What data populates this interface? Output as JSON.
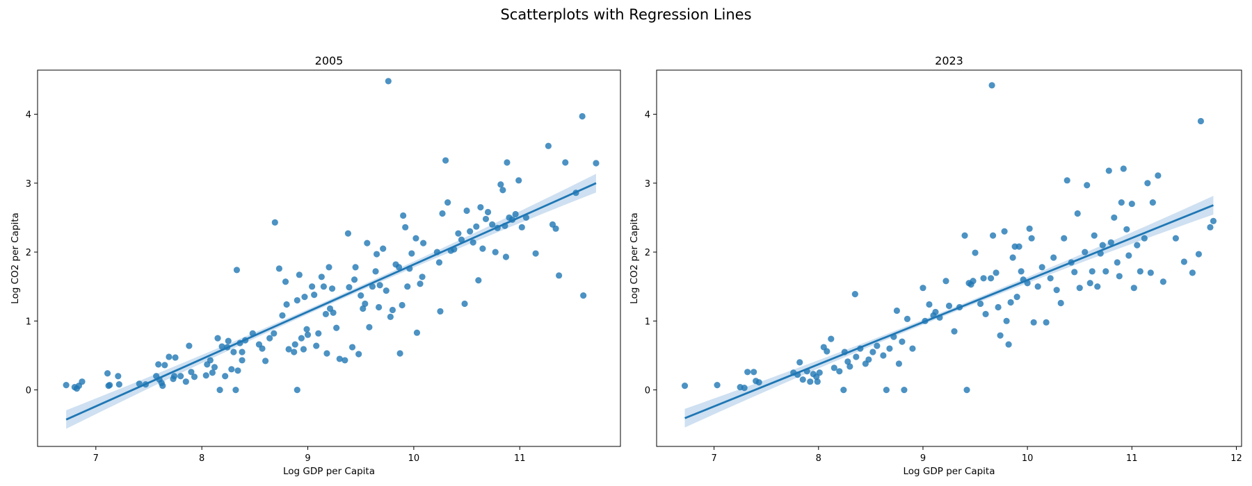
{
  "suptitle": "Scatterplots with Regression Lines",
  "colors": {
    "points": "#1f77b4",
    "line": "#1f77b4",
    "band": "#c6dbef"
  },
  "chart_data": [
    {
      "type": "scatter",
      "title": "2005",
      "xlabel": "Log GDP per Capita",
      "ylabel": "Log CO2 per Capita",
      "xlim": [
        6.45,
        11.95
      ],
      "ylim": [
        -0.82,
        4.64
      ],
      "xticks": [
        7,
        8,
        9,
        10,
        11
      ],
      "yticks": [
        0,
        1,
        2,
        3,
        4
      ],
      "regression": {
        "x0": 6.72,
        "y0": -0.43,
        "x1": 11.72,
        "y1": 3.0
      },
      "points": [
        [
          6.72,
          0.07
        ],
        [
          6.8,
          0.04
        ],
        [
          6.82,
          0.02
        ],
        [
          6.84,
          0.06
        ],
        [
          6.87,
          0.12
        ],
        [
          7.11,
          0.24
        ],
        [
          7.12,
          0.06
        ],
        [
          7.13,
          0.07
        ],
        [
          7.21,
          0.2
        ],
        [
          7.22,
          0.08
        ],
        [
          7.41,
          0.09
        ],
        [
          7.47,
          0.08
        ],
        [
          7.57,
          0.2
        ],
        [
          7.59,
          0.37
        ],
        [
          7.6,
          0.15
        ],
        [
          7.62,
          0.1
        ],
        [
          7.63,
          0.06
        ],
        [
          7.65,
          0.36
        ],
        [
          7.69,
          0.48
        ],
        [
          7.73,
          0.16
        ],
        [
          7.74,
          0.2
        ],
        [
          7.75,
          0.47
        ],
        [
          7.8,
          0.2
        ],
        [
          7.85,
          0.12
        ],
        [
          7.88,
          0.64
        ],
        [
          7.9,
          0.26
        ],
        [
          7.93,
          0.19
        ],
        [
          8.04,
          0.21
        ],
        [
          8.05,
          0.37
        ],
        [
          8.08,
          0.43
        ],
        [
          8.1,
          0.25
        ],
        [
          8.12,
          0.33
        ],
        [
          8.15,
          0.75
        ],
        [
          8.17,
          0.0
        ],
        [
          8.19,
          0.63
        ],
        [
          8.22,
          0.2
        ],
        [
          8.24,
          0.62
        ],
        [
          8.25,
          0.71
        ],
        [
          8.28,
          0.3
        ],
        [
          8.3,
          0.55
        ],
        [
          8.32,
          0.0
        ],
        [
          8.33,
          1.74
        ],
        [
          8.34,
          0.28
        ],
        [
          8.36,
          0.68
        ],
        [
          8.38,
          0.55
        ],
        [
          8.38,
          0.43
        ],
        [
          8.41,
          0.72
        ],
        [
          8.48,
          0.82
        ],
        [
          8.54,
          0.66
        ],
        [
          8.57,
          0.6
        ],
        [
          8.6,
          0.42
        ],
        [
          8.64,
          0.75
        ],
        [
          8.68,
          0.82
        ],
        [
          8.69,
          2.43
        ],
        [
          8.73,
          1.76
        ],
        [
          8.76,
          1.08
        ],
        [
          8.79,
          1.57
        ],
        [
          8.8,
          1.24
        ],
        [
          8.82,
          0.59
        ],
        [
          8.87,
          0.55
        ],
        [
          8.88,
          0.66
        ],
        [
          8.9,
          1.3
        ],
        [
          8.9,
          0.0
        ],
        [
          8.92,
          1.67
        ],
        [
          8.94,
          0.75
        ],
        [
          8.96,
          0.59
        ],
        [
          8.97,
          1.35
        ],
        [
          8.99,
          0.88
        ],
        [
          9.0,
          0.8
        ],
        [
          9.04,
          1.5
        ],
        [
          9.06,
          1.38
        ],
        [
          9.08,
          0.64
        ],
        [
          9.1,
          0.82
        ],
        [
          9.13,
          1.64
        ],
        [
          9.15,
          1.5
        ],
        [
          9.17,
          1.1
        ],
        [
          9.18,
          0.53
        ],
        [
          9.2,
          1.78
        ],
        [
          9.21,
          1.18
        ],
        [
          9.23,
          1.47
        ],
        [
          9.24,
          1.12
        ],
        [
          9.27,
          0.9
        ],
        [
          9.3,
          0.45
        ],
        [
          9.35,
          0.43
        ],
        [
          9.38,
          2.27
        ],
        [
          9.39,
          1.49
        ],
        [
          9.42,
          0.62
        ],
        [
          9.44,
          1.6
        ],
        [
          9.45,
          1.78
        ],
        [
          9.48,
          0.52
        ],
        [
          9.5,
          1.37
        ],
        [
          9.52,
          1.18
        ],
        [
          9.54,
          1.25
        ],
        [
          9.56,
          2.13
        ],
        [
          9.58,
          0.91
        ],
        [
          9.61,
          1.5
        ],
        [
          9.64,
          1.72
        ],
        [
          9.65,
          1.97
        ],
        [
          9.67,
          1.2
        ],
        [
          9.68,
          1.52
        ],
        [
          9.71,
          2.05
        ],
        [
          9.74,
          1.44
        ],
        [
          9.76,
          4.48
        ],
        [
          9.78,
          1.06
        ],
        [
          9.8,
          1.16
        ],
        [
          9.83,
          1.82
        ],
        [
          9.86,
          1.78
        ],
        [
          9.87,
          0.53
        ],
        [
          9.89,
          1.23
        ],
        [
          9.9,
          2.53
        ],
        [
          9.92,
          2.36
        ],
        [
          9.94,
          1.5
        ],
        [
          9.96,
          1.76
        ],
        [
          9.98,
          1.98
        ],
        [
          10.02,
          2.2
        ],
        [
          10.03,
          0.83
        ],
        [
          10.06,
          1.54
        ],
        [
          10.08,
          1.64
        ],
        [
          10.09,
          2.13
        ],
        [
          10.22,
          2.0
        ],
        [
          10.24,
          1.85
        ],
        [
          10.25,
          1.14
        ],
        [
          10.27,
          2.56
        ],
        [
          10.3,
          3.33
        ],
        [
          10.32,
          2.72
        ],
        [
          10.35,
          2.02
        ],
        [
          10.38,
          2.04
        ],
        [
          10.42,
          2.27
        ],
        [
          10.45,
          2.18
        ],
        [
          10.48,
          1.25
        ],
        [
          10.5,
          2.6
        ],
        [
          10.53,
          2.3
        ],
        [
          10.56,
          2.14
        ],
        [
          10.59,
          2.37
        ],
        [
          10.61,
          1.59
        ],
        [
          10.63,
          2.65
        ],
        [
          10.65,
          2.05
        ],
        [
          10.68,
          2.48
        ],
        [
          10.7,
          2.58
        ],
        [
          10.74,
          2.4
        ],
        [
          10.77,
          2.0
        ],
        [
          10.79,
          2.35
        ],
        [
          10.82,
          2.98
        ],
        [
          10.84,
          2.9
        ],
        [
          10.86,
          2.38
        ],
        [
          10.87,
          1.93
        ],
        [
          10.88,
          3.3
        ],
        [
          10.9,
          2.5
        ],
        [
          10.93,
          2.47
        ],
        [
          10.96,
          2.55
        ],
        [
          10.99,
          3.04
        ],
        [
          11.02,
          2.36
        ],
        [
          11.06,
          2.5
        ],
        [
          11.15,
          1.98
        ],
        [
          11.27,
          3.54
        ],
        [
          11.31,
          2.4
        ],
        [
          11.34,
          2.34
        ],
        [
          11.37,
          1.66
        ],
        [
          11.43,
          3.3
        ],
        [
          11.53,
          2.86
        ],
        [
          11.59,
          3.97
        ],
        [
          11.6,
          1.37
        ],
        [
          11.72,
          3.29
        ]
      ]
    },
    {
      "type": "scatter",
      "title": "2023",
      "xlabel": "Log GDP per Capita",
      "ylabel": "Log CO2 per Capita",
      "xlim": [
        6.45,
        12.05
      ],
      "ylim": [
        -0.82,
        4.64
      ],
      "xticks": [
        7,
        8,
        9,
        10,
        11,
        12
      ],
      "yticks": [
        0,
        1,
        2,
        3,
        4
      ],
      "regression": {
        "x0": 6.72,
        "y0": -0.41,
        "x1": 11.78,
        "y1": 2.68
      },
      "points": [
        [
          6.72,
          0.06
        ],
        [
          7.03,
          0.07
        ],
        [
          7.25,
          0.04
        ],
        [
          7.29,
          0.03
        ],
        [
          7.32,
          0.26
        ],
        [
          7.38,
          0.26
        ],
        [
          7.4,
          0.13
        ],
        [
          7.43,
          0.11
        ],
        [
          7.76,
          0.25
        ],
        [
          7.8,
          0.22
        ],
        [
          7.82,
          0.4
        ],
        [
          7.85,
          0.15
        ],
        [
          7.89,
          0.27
        ],
        [
          7.92,
          0.12
        ],
        [
          7.95,
          0.23
        ],
        [
          7.98,
          0.19
        ],
        [
          7.99,
          0.12
        ],
        [
          8.01,
          0.25
        ],
        [
          8.05,
          0.62
        ],
        [
          8.08,
          0.56
        ],
        [
          8.12,
          0.74
        ],
        [
          8.15,
          0.32
        ],
        [
          8.2,
          0.27
        ],
        [
          8.24,
          0.0
        ],
        [
          8.25,
          0.55
        ],
        [
          8.28,
          0.41
        ],
        [
          8.3,
          0.34
        ],
        [
          8.35,
          1.39
        ],
        [
          8.36,
          0.48
        ],
        [
          8.4,
          0.6
        ],
        [
          8.45,
          0.38
        ],
        [
          8.48,
          0.44
        ],
        [
          8.52,
          0.55
        ],
        [
          8.56,
          0.64
        ],
        [
          8.62,
          0.5
        ],
        [
          8.65,
          0.0
        ],
        [
          8.68,
          0.6
        ],
        [
          8.72,
          0.77
        ],
        [
          8.75,
          1.15
        ],
        [
          8.77,
          0.38
        ],
        [
          8.8,
          0.7
        ],
        [
          8.82,
          0.0
        ],
        [
          8.85,
          1.03
        ],
        [
          8.9,
          0.6
        ],
        [
          9.0,
          1.48
        ],
        [
          9.02,
          1.0
        ],
        [
          9.06,
          1.24
        ],
        [
          9.1,
          1.08
        ],
        [
          9.12,
          1.13
        ],
        [
          9.16,
          1.05
        ],
        [
          9.22,
          1.58
        ],
        [
          9.25,
          1.22
        ],
        [
          9.3,
          0.85
        ],
        [
          9.35,
          1.2
        ],
        [
          9.4,
          2.24
        ],
        [
          9.42,
          0.0
        ],
        [
          9.44,
          1.55
        ],
        [
          9.46,
          1.53
        ],
        [
          9.48,
          1.58
        ],
        [
          9.5,
          1.99
        ],
        [
          9.55,
          1.25
        ],
        [
          9.58,
          1.62
        ],
        [
          9.6,
          1.1
        ],
        [
          9.65,
          1.62
        ],
        [
          9.66,
          4.42
        ],
        [
          9.67,
          2.24
        ],
        [
          9.7,
          1.7
        ],
        [
          9.72,
          1.2
        ],
        [
          9.74,
          0.79
        ],
        [
          9.78,
          2.3
        ],
        [
          9.8,
          1.0
        ],
        [
          9.82,
          0.66
        ],
        [
          9.84,
          1.27
        ],
        [
          9.86,
          1.92
        ],
        [
          9.88,
          2.08
        ],
        [
          9.9,
          1.35
        ],
        [
          9.92,
          2.08
        ],
        [
          9.94,
          1.72
        ],
        [
          9.96,
          1.6
        ],
        [
          10.0,
          1.55
        ],
        [
          10.02,
          2.34
        ],
        [
          10.04,
          2.2
        ],
        [
          10.06,
          0.98
        ],
        [
          10.1,
          1.5
        ],
        [
          10.14,
          1.78
        ],
        [
          10.18,
          0.98
        ],
        [
          10.22,
          1.62
        ],
        [
          10.25,
          1.92
        ],
        [
          10.28,
          1.45
        ],
        [
          10.32,
          1.26
        ],
        [
          10.35,
          2.2
        ],
        [
          10.38,
          3.04
        ],
        [
          10.42,
          1.85
        ],
        [
          10.45,
          1.71
        ],
        [
          10.48,
          2.56
        ],
        [
          10.5,
          1.48
        ],
        [
          10.55,
          2.0
        ],
        [
          10.57,
          2.97
        ],
        [
          10.6,
          1.55
        ],
        [
          10.62,
          1.72
        ],
        [
          10.64,
          2.24
        ],
        [
          10.67,
          1.5
        ],
        [
          10.7,
          1.98
        ],
        [
          10.72,
          2.1
        ],
        [
          10.75,
          1.72
        ],
        [
          10.78,
          3.18
        ],
        [
          10.8,
          2.14
        ],
        [
          10.83,
          2.5
        ],
        [
          10.86,
          1.85
        ],
        [
          10.88,
          1.65
        ],
        [
          10.9,
          2.72
        ],
        [
          10.92,
          3.21
        ],
        [
          10.95,
          2.33
        ],
        [
          10.97,
          1.95
        ],
        [
          11.0,
          2.7
        ],
        [
          11.02,
          1.48
        ],
        [
          11.05,
          2.1
        ],
        [
          11.08,
          1.72
        ],
        [
          11.12,
          2.2
        ],
        [
          11.15,
          3.0
        ],
        [
          11.18,
          1.7
        ],
        [
          11.2,
          2.72
        ],
        [
          11.25,
          3.11
        ],
        [
          11.3,
          1.57
        ],
        [
          11.42,
          2.2
        ],
        [
          11.5,
          1.86
        ],
        [
          11.58,
          1.7
        ],
        [
          11.64,
          1.97
        ],
        [
          11.66,
          3.9
        ],
        [
          11.75,
          2.36
        ],
        [
          11.78,
          2.45
        ]
      ]
    }
  ]
}
